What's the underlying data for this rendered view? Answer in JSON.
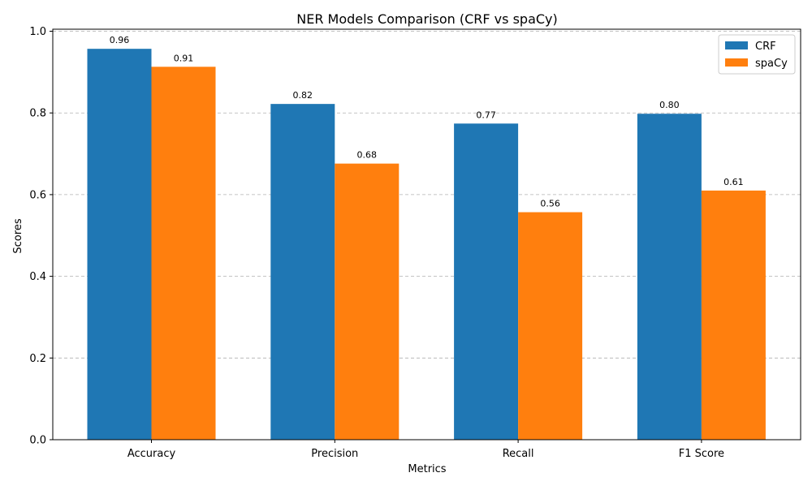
{
  "chart_data": {
    "type": "bar",
    "title": "NER Models Comparison (CRF vs spaCy)",
    "xlabel": "Metrics",
    "ylabel": "Scores",
    "categories": [
      "Accuracy",
      "Precision",
      "Recall",
      "F1 Score"
    ],
    "series": [
      {
        "name": "CRF",
        "color": "#1f77b4",
        "values": [
          0.957,
          0.822,
          0.774,
          0.798
        ],
        "labels": [
          "0.96",
          "0.82",
          "0.77",
          "0.80"
        ]
      },
      {
        "name": "spaCy",
        "color": "#ff7f0e",
        "values": [
          0.913,
          0.676,
          0.557,
          0.61
        ],
        "labels": [
          "0.91",
          "0.68",
          "0.56",
          "0.61"
        ]
      }
    ],
    "ylim": [
      0,
      1.005
    ],
    "yticks": [
      0.0,
      0.2,
      0.4,
      0.6,
      0.8,
      1.0
    ],
    "ytick_labels": [
      "0.0",
      "0.2",
      "0.4",
      "0.6",
      "0.8",
      "1.0"
    ],
    "grid": "y-dashed",
    "legend_position": "top-right"
  }
}
